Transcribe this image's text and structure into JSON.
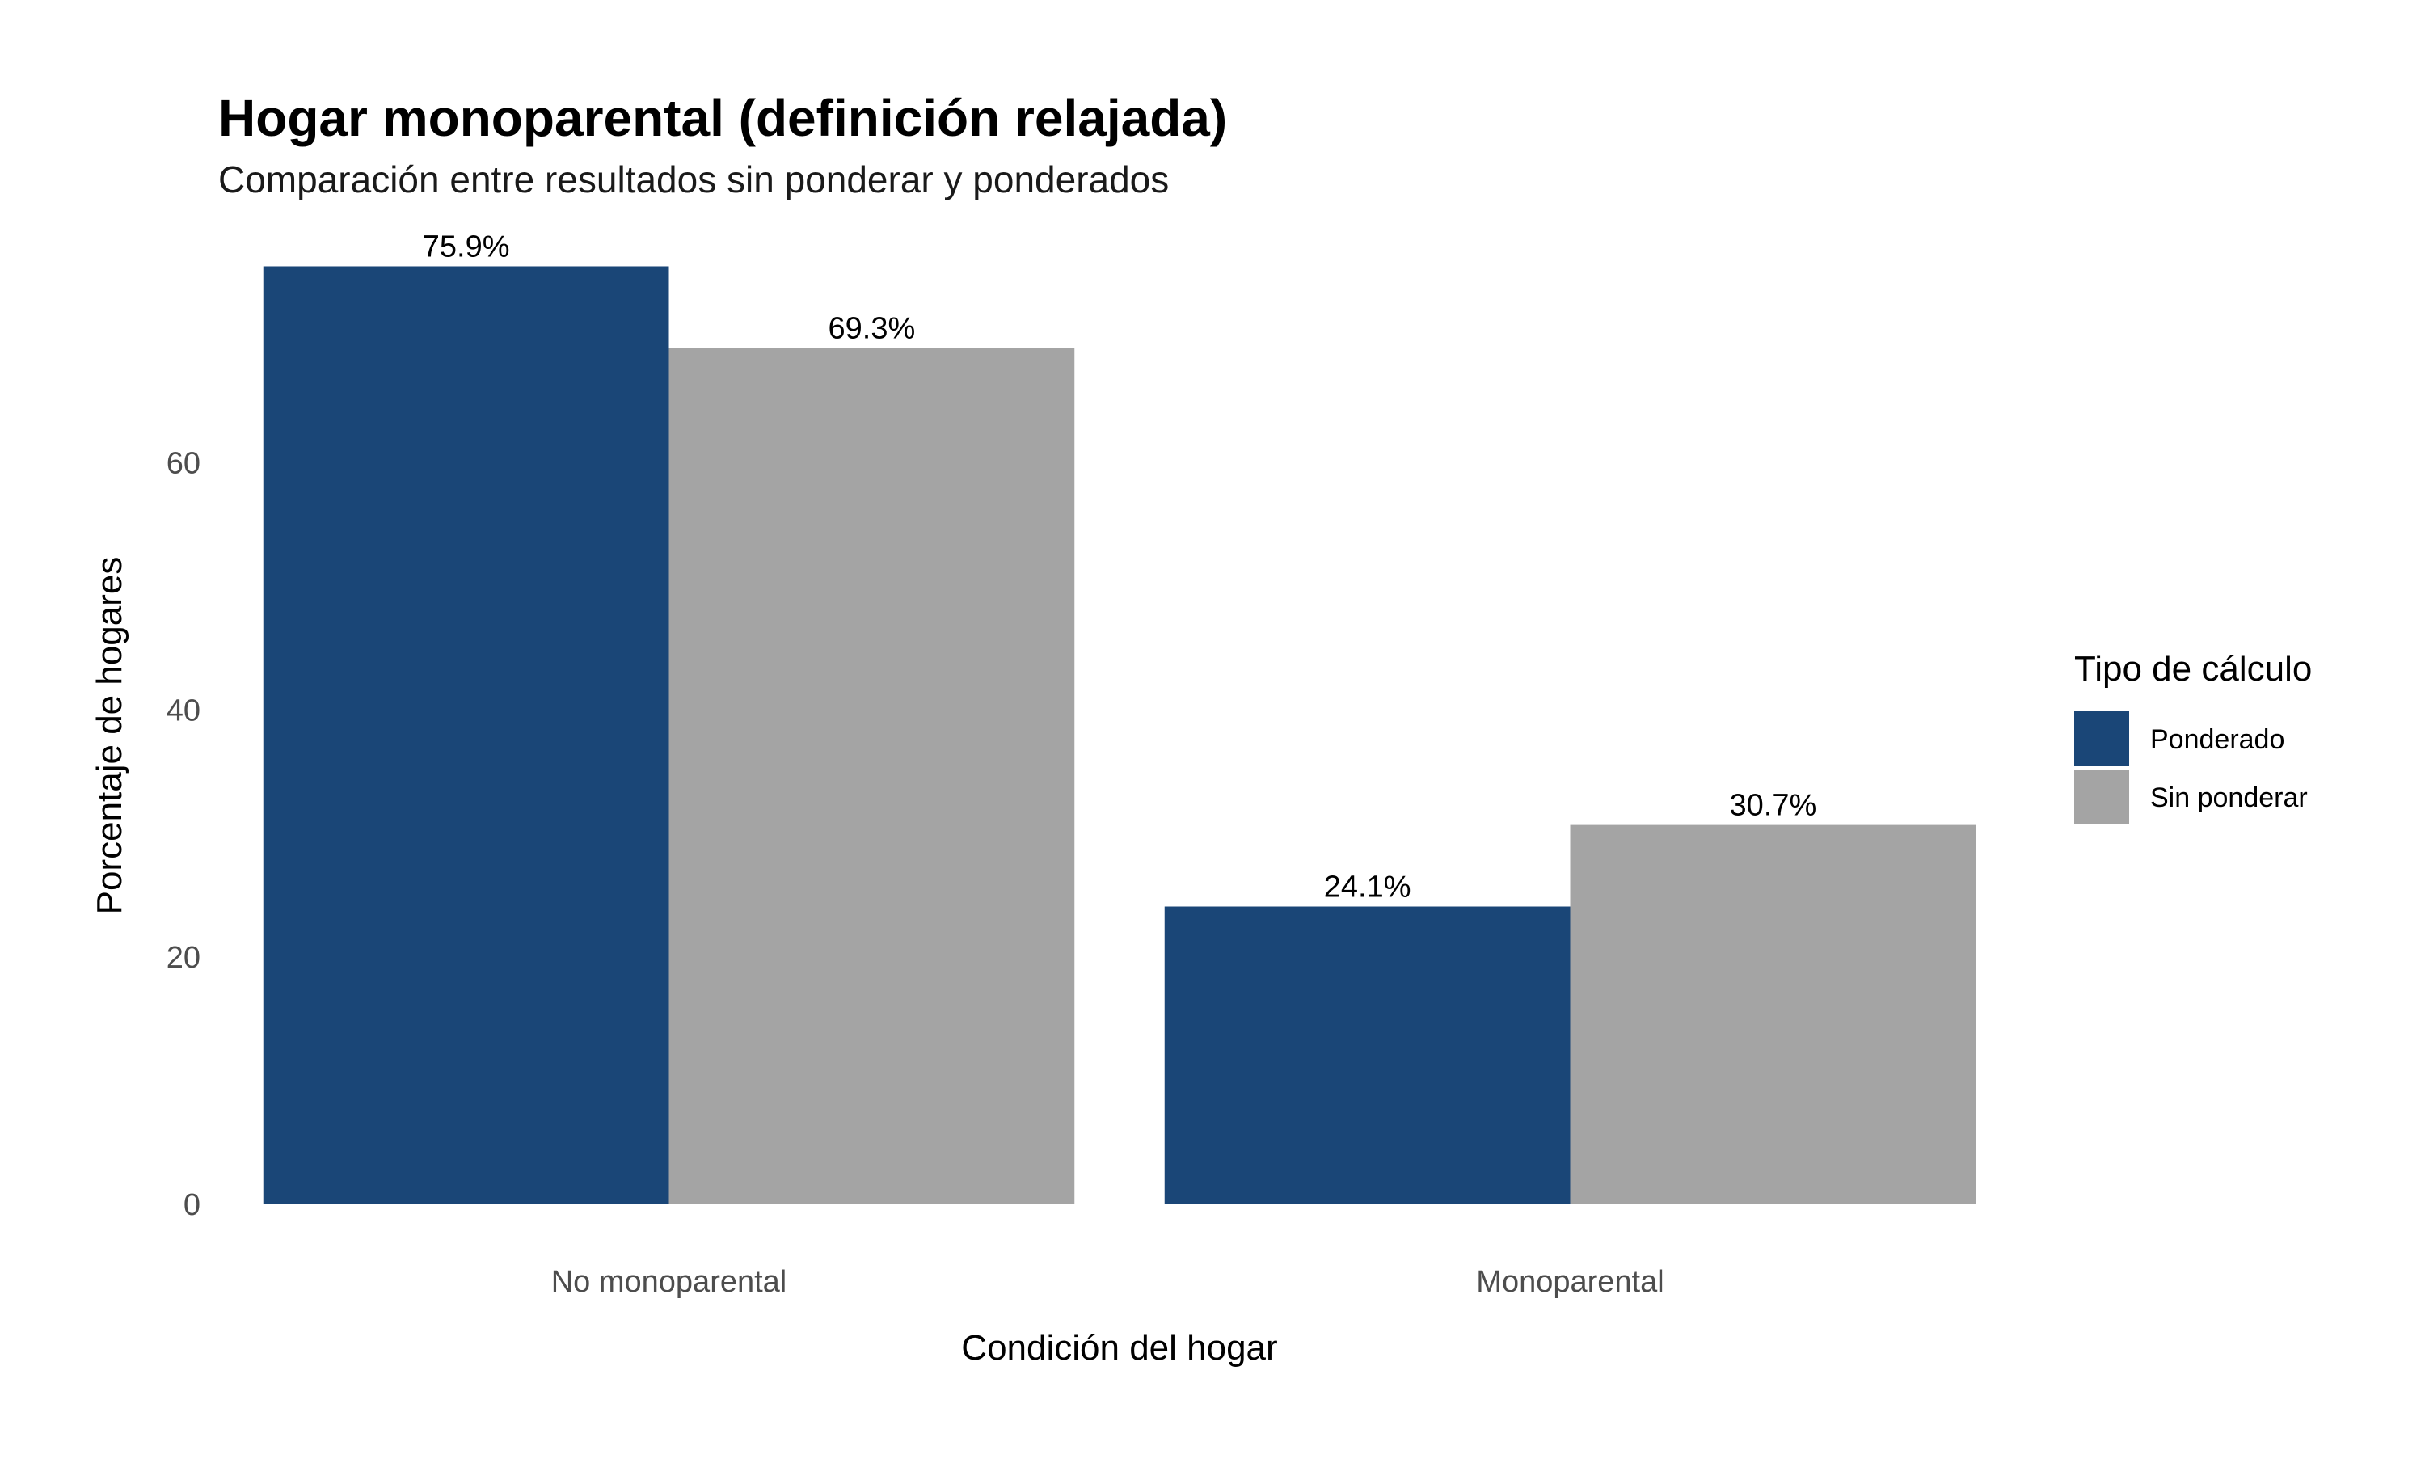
{
  "chart_data": {
    "type": "bar",
    "title": "Hogar monoparental (definición relajada)",
    "subtitle": "Comparación entre resultados sin ponderar y ponderados",
    "xlabel": "Condición del hogar",
    "ylabel": "Porcentaje de hogares",
    "categories": [
      "No monoparental",
      "Monoparental"
    ],
    "series": [
      {
        "name": "Ponderado",
        "values": [
          75.9,
          24.1
        ],
        "labels": [
          "75.9%",
          "24.1%"
        ],
        "color": "#1a4677"
      },
      {
        "name": "Sin ponderar",
        "values": [
          69.3,
          30.7
        ],
        "labels": [
          "69.3%",
          "30.7%"
        ],
        "color": "#a4a4a4"
      }
    ],
    "ylim": [
      0,
      80
    ],
    "yticks": [
      0,
      20,
      40,
      60
    ],
    "grid": false,
    "legend": {
      "title": "Tipo de cálculo",
      "position": "right"
    }
  }
}
